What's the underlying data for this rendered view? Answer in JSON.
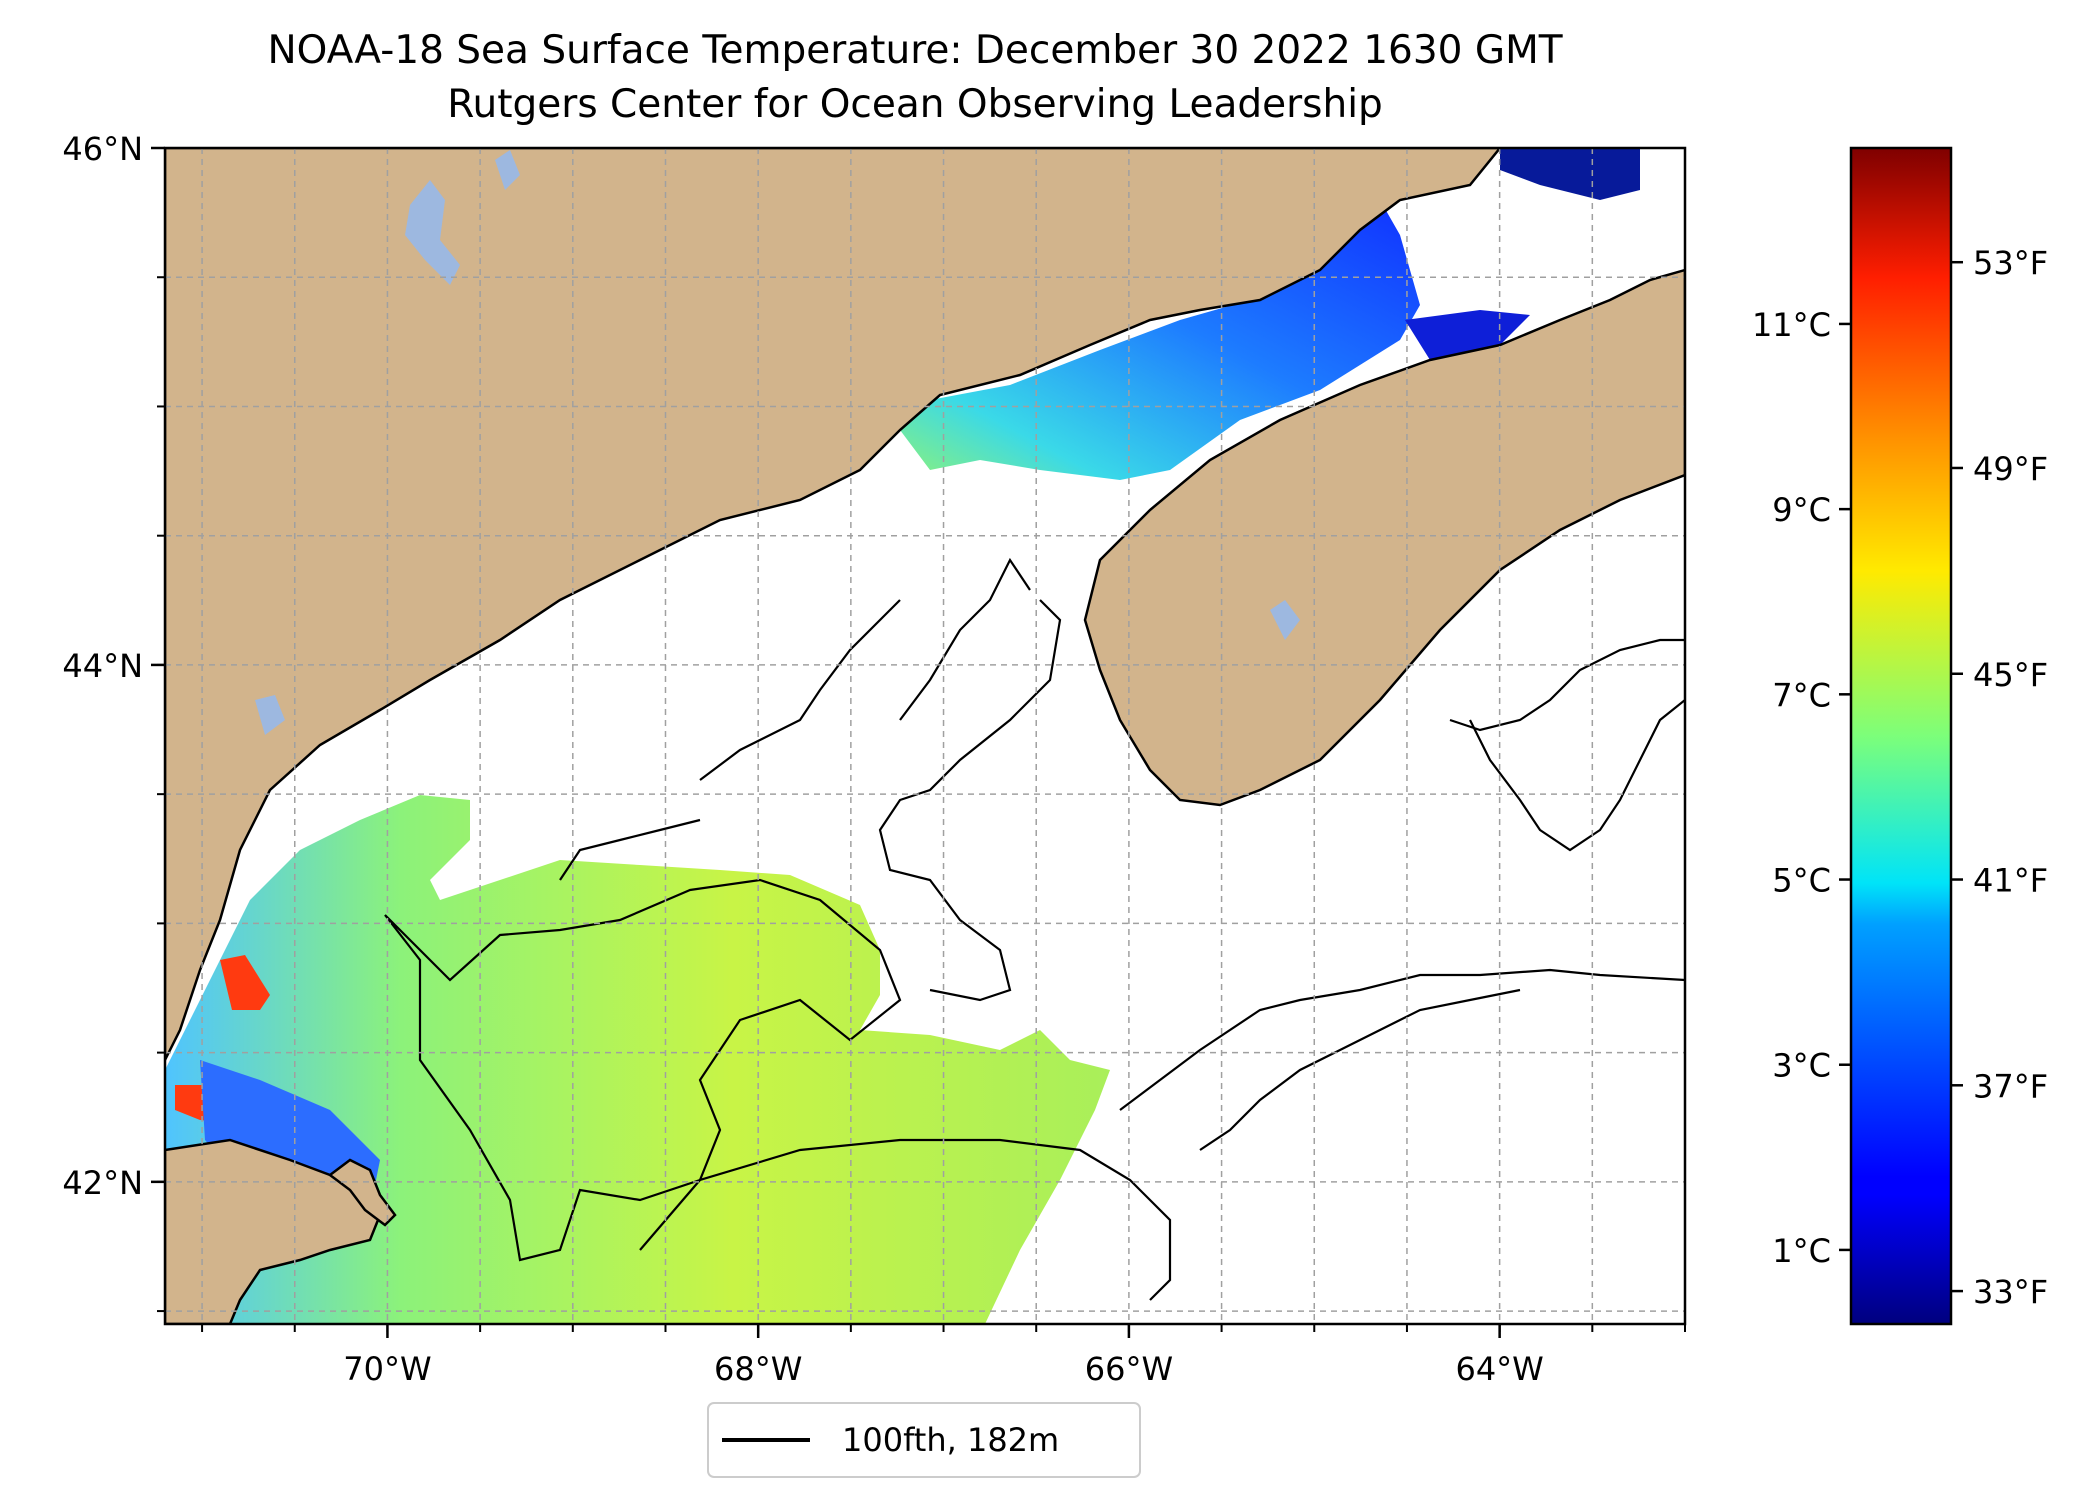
{
  "title": "NOAA-18 Sea Surface Temperature: December 30 2022 1630 GMT",
  "subtitle": "Rutgers Center for Ocean Observing Leadership",
  "map": {
    "lon_range": [
      -71.2,
      -63.0
    ],
    "lat_range": [
      41.45,
      46.0
    ],
    "lon_ticks": [
      {
        "value": -70,
        "label": "70°W"
      },
      {
        "value": -68,
        "label": "68°W"
      },
      {
        "value": -66,
        "label": "66°W"
      },
      {
        "value": -64,
        "label": "64°W"
      }
    ],
    "lat_ticks": [
      {
        "value": 46,
        "label": "46°N"
      },
      {
        "value": 44,
        "label": "44°N"
      },
      {
        "value": 42,
        "label": "42°N"
      }
    ],
    "grid": true,
    "colors": {
      "land": "#d2b48c",
      "water_lakes": "#9db8e0",
      "no_data": "#ffffff"
    }
  },
  "legend": {
    "label": "100fth, 182m",
    "placement": "bottom-center"
  },
  "colorbar": {
    "colormap": "jet",
    "celsius_range": [
      0.2,
      12.9
    ],
    "celsius_ticks": [
      {
        "value": 1,
        "label": "1°C"
      },
      {
        "value": 3,
        "label": "3°C"
      },
      {
        "value": 5,
        "label": "5°C"
      },
      {
        "value": 7,
        "label": "7°C"
      },
      {
        "value": 9,
        "label": "9°C"
      },
      {
        "value": 11,
        "label": "11°C"
      }
    ],
    "fahrenheit_ticks": [
      {
        "value": 33,
        "label": "33°F"
      },
      {
        "value": 37,
        "label": "37°F"
      },
      {
        "value": 41,
        "label": "41°F"
      },
      {
        "value": 45,
        "label": "45°F"
      },
      {
        "value": 49,
        "label": "49°F"
      },
      {
        "value": 53,
        "label": "53°F"
      }
    ]
  }
}
